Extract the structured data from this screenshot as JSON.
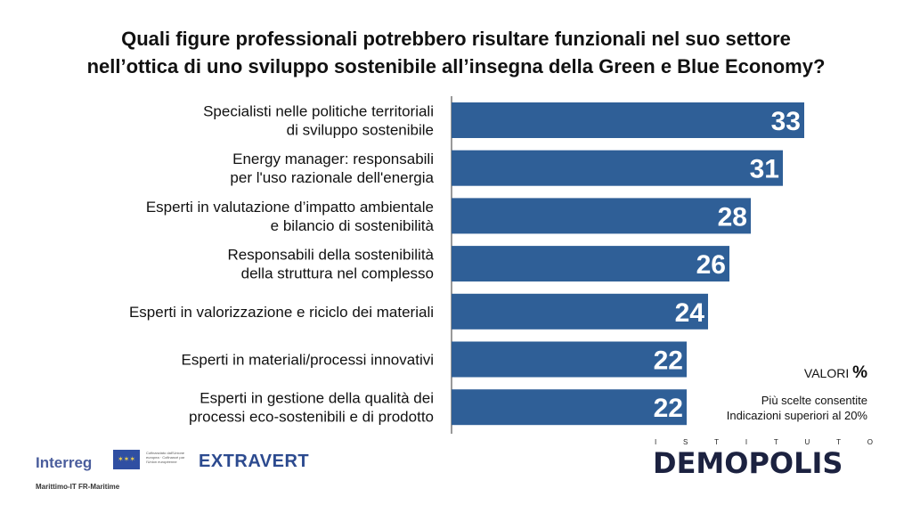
{
  "title": [
    "Quali figure professionali potrebbero risultare funzionali nel suo settore",
    "nell’ottica di uno sviluppo sostenibile all’insegna della Green e Blue Economy?"
  ],
  "chart_data": {
    "type": "bar",
    "orientation": "horizontal",
    "categories": [
      [
        "Specialisti nelle politiche territoriali",
        "di sviluppo sostenibile"
      ],
      [
        "Energy manager: responsabili",
        "per l'uso razionale dell'energia"
      ],
      [
        "Esperti in valutazione d’impatto ambientale",
        "e bilancio di sostenibilità"
      ],
      [
        "Responsabili della sostenibilità",
        "della struttura nel complesso"
      ],
      [
        "Esperti in valorizzazione e riciclo dei materiali"
      ],
      [
        "Esperti in materiali/processi innovativi"
      ],
      [
        "Esperti in gestione della qualità dei",
        "processi eco-sostenibili e di prodotto"
      ]
    ],
    "values": [
      33,
      31,
      28,
      26,
      24,
      22,
      22
    ],
    "bar_color": "#2f5f97",
    "label_color": "#ffffff",
    "grid": false
  },
  "notes": {
    "unit_label": "VALORI",
    "unit_symbol": "%",
    "line1": "Più scelte consentite",
    "line2": "Indicazioni superiori al 20%"
  },
  "logos": {
    "interreg": "Interreg",
    "eu_text": "Cofinanziato dall'Unione europea · Cofinancé par l'Union européenne",
    "maritime": "Marittimo-IT FR-Maritime",
    "extravert": "EXTRAVERT",
    "istituto": "ISTITUTO",
    "demopolis": "DEMOPOLIS"
  }
}
